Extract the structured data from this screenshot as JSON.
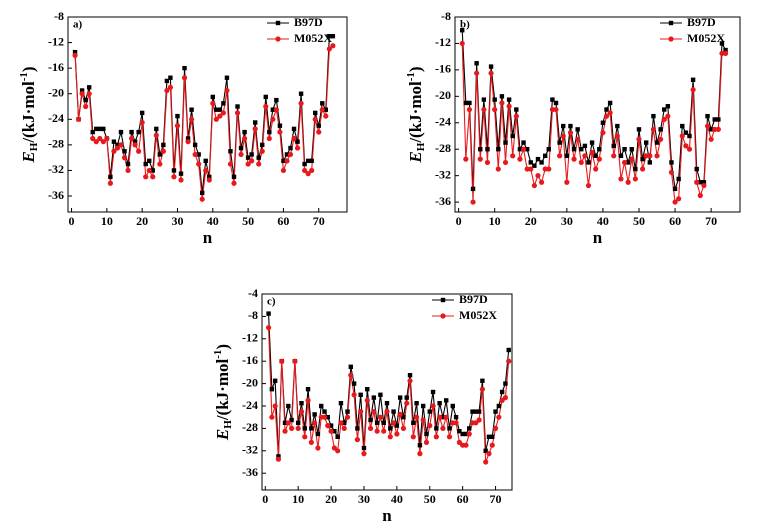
{
  "chart_data": [
    {
      "type": "line",
      "panel_label": "a)",
      "xlabel": "n",
      "ylabel": [
        "E",
        "H",
        "/(kJ·mol",
        "-1",
        ")"
      ],
      "x": [
        1,
        2,
        3,
        4,
        5,
        6,
        7,
        8,
        9,
        10,
        11,
        12,
        13,
        14,
        15,
        16,
        17,
        18,
        19,
        20,
        21,
        22,
        23,
        24,
        25,
        26,
        27,
        28,
        29,
        30,
        31,
        32,
        33,
        34,
        35,
        36,
        37,
        38,
        39,
        40,
        41,
        42,
        43,
        44,
        45,
        46,
        47,
        48,
        49,
        50,
        51,
        52,
        53,
        54,
        55,
        56,
        57,
        58,
        59,
        60,
        61,
        62,
        63,
        64,
        65,
        66,
        67,
        68,
        69,
        70,
        71,
        72,
        73,
        74
      ],
      "xlim": [
        -1,
        78
      ],
      "xticks": [
        0,
        10,
        20,
        30,
        40,
        50,
        60,
        70
      ],
      "ylim": [
        -38.5,
        -8
      ],
      "yticks": [
        -8,
        -12,
        -16,
        -20,
        -24,
        -28,
        -32,
        -36
      ],
      "legend": "upper right",
      "series": [
        {
          "name": "B97D",
          "color": "#000000",
          "marker": "square",
          "values": [
            -13.5,
            -24,
            -19.5,
            -21,
            -19,
            -26,
            -25.5,
            -25.5,
            -25.5,
            -27,
            -33,
            -27.5,
            -28,
            -26,
            -29,
            -31,
            -26,
            -27.5,
            -26,
            -23,
            -31,
            -30.5,
            -32,
            -25.5,
            -29.5,
            -28,
            -18,
            -17.5,
            -32,
            -23.5,
            -32.5,
            -16,
            -27,
            -22.5,
            -28,
            -29.5,
            -35.5,
            -30.5,
            -33,
            -20.5,
            -22.5,
            -22.5,
            -21.5,
            -17.5,
            -29,
            -33,
            -22,
            -28.5,
            -26,
            -30,
            -29.5,
            -24.5,
            -30,
            -28,
            -20.5,
            -26,
            -22.5,
            -21,
            -25,
            -30.5,
            -29.5,
            -28.5,
            -25.5,
            -27.5,
            -20,
            -31,
            -30.5,
            -30.5,
            -23,
            -25,
            -21.5,
            -22.5,
            -11,
            -11
          ]
        },
        {
          "name": "M052X",
          "color": "#e8191c",
          "marker": "circle",
          "values": [
            -14,
            -24,
            -20,
            -22,
            -20,
            -27,
            -27.5,
            -27,
            -27.5,
            -27,
            -34,
            -29,
            -28.5,
            -28,
            -30,
            -32,
            -27,
            -28,
            -29,
            -24.5,
            -33,
            -32,
            -33,
            -26.5,
            -31,
            -29,
            -19.5,
            -19,
            -33,
            -25,
            -33.5,
            -17.5,
            -27.5,
            -24,
            -29.5,
            -31,
            -36.5,
            -32,
            -33.5,
            -21.5,
            -24,
            -23.5,
            -23,
            -19.5,
            -31,
            -34,
            -23,
            -29.5,
            -27,
            -31,
            -30.5,
            -25.5,
            -31,
            -29,
            -22,
            -27,
            -24,
            -22.5,
            -26,
            -32,
            -30.5,
            -29.5,
            -27,
            -28.5,
            -21.5,
            -32,
            -32.5,
            -32,
            -24,
            -26,
            -22.5,
            -23.5,
            -13,
            -12.5
          ]
        }
      ]
    },
    {
      "type": "line",
      "panel_label": "b)",
      "xlabel": "n",
      "ylabel": [
        "E",
        "H",
        "/(kJ·mol",
        "-1",
        ")"
      ],
      "x": [
        1,
        2,
        3,
        4,
        5,
        6,
        7,
        8,
        9,
        10,
        11,
        12,
        13,
        14,
        15,
        16,
        17,
        18,
        19,
        20,
        21,
        22,
        23,
        24,
        25,
        26,
        27,
        28,
        29,
        30,
        31,
        32,
        33,
        34,
        35,
        36,
        37,
        38,
        39,
        40,
        41,
        42,
        43,
        44,
        45,
        46,
        47,
        48,
        49,
        50,
        51,
        52,
        53,
        54,
        55,
        56,
        57,
        58,
        59,
        60,
        61,
        62,
        63,
        64,
        65,
        66,
        67,
        68,
        69,
        70,
        71,
        72,
        73,
        74
      ],
      "xlim": [
        -1,
        78
      ],
      "xticks": [
        0,
        10,
        20,
        30,
        40,
        50,
        60,
        70
      ],
      "ylim": [
        -37.5,
        -8
      ],
      "yticks": [
        -8,
        -12,
        -16,
        -20,
        -24,
        -28,
        -32,
        -36
      ],
      "legend": "upper right",
      "series": [
        {
          "name": "B97D",
          "color": "#000000",
          "marker": "square",
          "values": [
            -10,
            -21,
            -21,
            -34,
            -15,
            -28,
            -20.5,
            -28,
            -15.5,
            -20.5,
            -28,
            -20,
            -27,
            -20.5,
            -26,
            -22,
            -28,
            -27,
            -28,
            -30,
            -30.5,
            -29.5,
            -30,
            -29,
            -28,
            -20.5,
            -21,
            -27,
            -24.5,
            -29,
            -24.5,
            -28,
            -25,
            -28,
            -27.5,
            -30,
            -27,
            -29,
            -28,
            -24,
            -22,
            -21,
            -27.5,
            -24.5,
            -29,
            -28,
            -30,
            -28,
            -31,
            -25,
            -29.5,
            -27,
            -30,
            -23,
            -27,
            -25,
            -22,
            -21.5,
            -30,
            -34,
            -32.5,
            -24.5,
            -25.5,
            -26,
            -17.5,
            -31,
            -33,
            -33,
            -23,
            -25,
            -23.5,
            -23.5,
            -12,
            -13
          ]
        },
        {
          "name": "M052X",
          "color": "#e8191c",
          "marker": "circle",
          "values": [
            -12,
            -29.5,
            -22,
            -36,
            -16.5,
            -29.5,
            -22,
            -30,
            -16.5,
            -22,
            -31,
            -21,
            -30,
            -21.5,
            -29,
            -23,
            -29.5,
            -28,
            -31,
            -31,
            -33.5,
            -32,
            -33,
            -31,
            -31,
            -22,
            -22,
            -29,
            -26,
            -33,
            -25.5,
            -29.5,
            -26.5,
            -30,
            -29,
            -33.5,
            -28.5,
            -31,
            -29.5,
            -25.5,
            -23,
            -22.5,
            -29,
            -26,
            -32.5,
            -30,
            -33,
            -29.5,
            -32.5,
            -26.5,
            -31,
            -29,
            -29,
            -25,
            -29,
            -26.5,
            -23.5,
            -23,
            -31.5,
            -36,
            -35.5,
            -26,
            -27.5,
            -28,
            -19,
            -33,
            -35,
            -33.5,
            -24.5,
            -26.5,
            -25,
            -25,
            -13.5,
            -13.5
          ]
        }
      ]
    },
    {
      "type": "line",
      "panel_label": "c)",
      "xlabel": "n",
      "ylabel": [
        "E",
        "H",
        "/(kJ·mol",
        "-1",
        ")"
      ],
      "x": [
        1,
        2,
        3,
        4,
        5,
        6,
        7,
        8,
        9,
        10,
        11,
        12,
        13,
        14,
        15,
        16,
        17,
        18,
        19,
        20,
        21,
        22,
        23,
        24,
        25,
        26,
        27,
        28,
        29,
        30,
        31,
        32,
        33,
        34,
        35,
        36,
        37,
        38,
        39,
        40,
        41,
        42,
        43,
        44,
        45,
        46,
        47,
        48,
        49,
        50,
        51,
        52,
        53,
        54,
        55,
        56,
        57,
        58,
        59,
        60,
        61,
        62,
        63,
        64,
        65,
        66,
        67,
        68,
        69,
        70,
        71,
        72,
        73,
        74
      ],
      "xlim": [
        -1,
        75
      ],
      "xticks": [
        0,
        10,
        20,
        30,
        40,
        50,
        60,
        70
      ],
      "ylim": [
        -39,
        -4
      ],
      "yticks": [
        -4,
        -8,
        -12,
        -16,
        -20,
        -24,
        -28,
        -32,
        -36
      ],
      "legend": "upper right",
      "series": [
        {
          "name": "B97D",
          "color": "#000000",
          "marker": "square",
          "values": [
            -7.5,
            -21,
            -19.5,
            -33,
            -16,
            -27,
            -24,
            -26.5,
            -16,
            -27,
            -23.5,
            -28,
            -21,
            -28,
            -25.5,
            -29,
            -24,
            -25,
            -26,
            -27.5,
            -28.5,
            -29.5,
            -23.5,
            -27,
            -25,
            -17,
            -20,
            -28,
            -22,
            -31.5,
            -21,
            -26.5,
            -22.5,
            -27,
            -22,
            -27,
            -23.5,
            -28,
            -25,
            -27.5,
            -22.5,
            -26,
            -22.5,
            -18.5,
            -27,
            -23.5,
            -31,
            -24,
            -29,
            -25,
            -21.5,
            -28,
            -23.5,
            -26,
            -23,
            -28,
            -24,
            -26,
            -28.5,
            -29,
            -29,
            -28,
            -25,
            -25,
            -25,
            -19.5,
            -32,
            -29.5,
            -29.5,
            -25,
            -24,
            -21.5,
            -20,
            -14
          ]
        },
        {
          "name": "M052X",
          "color": "#e8191c",
          "marker": "circle",
          "values": [
            -10,
            -26,
            -24,
            -33.5,
            -16,
            -28.5,
            -27,
            -28,
            -16,
            -28,
            -25,
            -29.5,
            -23,
            -30.5,
            -27,
            -31.5,
            -26,
            -26,
            -27.5,
            -28.5,
            -31.5,
            -32,
            -27,
            -28,
            -26,
            -18.5,
            -22,
            -30,
            -25,
            -32.5,
            -23,
            -28,
            -25,
            -28.5,
            -26,
            -28.5,
            -25,
            -29.5,
            -27,
            -29,
            -25.5,
            -28,
            -23.5,
            -19.5,
            -29.5,
            -26,
            -32.5,
            -26.5,
            -30.5,
            -27.5,
            -24,
            -29.5,
            -26,
            -28,
            -26,
            -29.5,
            -27,
            -27,
            -30.5,
            -31,
            -31,
            -29,
            -27,
            -27,
            -26.5,
            -21,
            -34,
            -32.5,
            -31,
            -28,
            -26,
            -23,
            -22.5,
            -16
          ]
        }
      ]
    }
  ]
}
